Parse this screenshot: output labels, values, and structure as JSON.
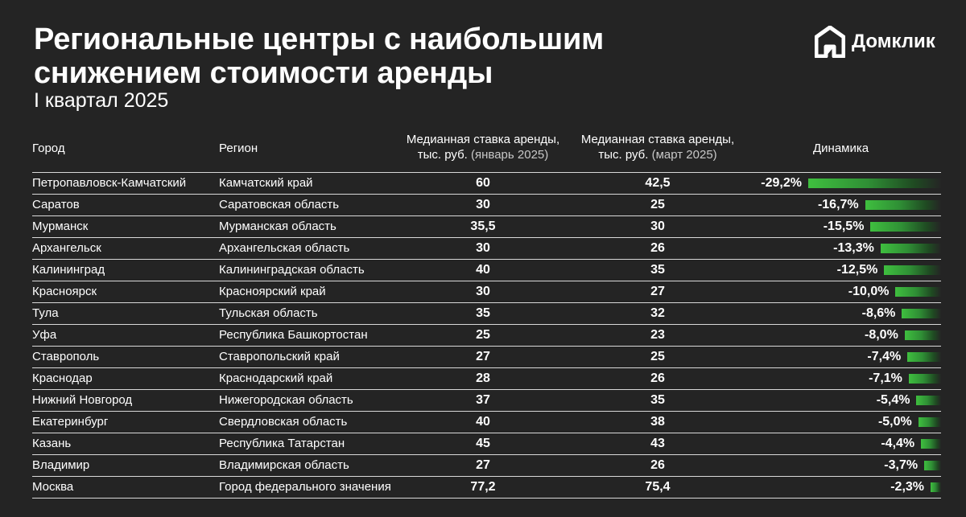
{
  "title_line1": "Региональные центры с наибольшим",
  "title_line2": "снижением стоимости аренды",
  "subtitle": "I квартал 2025",
  "logo": {
    "text": "Домклик",
    "icon": "domclick-house-icon"
  },
  "headers": {
    "city": "Город",
    "region": "Регион",
    "jan_line1": "Медианная ставка аренды,",
    "jan_line2_bold": "тыс. руб.",
    "jan_line2_light": "(январь 2025)",
    "mar_line1": "Медианная ставка аренды,",
    "mar_line2_bold": "тыс. руб.",
    "mar_line2_light": "(март 2025)",
    "dynamics": "Динамика"
  },
  "colors": {
    "background": "#242424",
    "bar": "#3fbf3f",
    "text": "#ffffff"
  },
  "chart_data": {
    "type": "table",
    "columns": [
      "Город",
      "Регион",
      "Медианная ставка аренды, тыс. руб. (январь 2025)",
      "Медианная ставка аренды, тыс. руб. (март 2025)",
      "Динамика"
    ],
    "rows": [
      {
        "city": "Петропавловск-Камчатский",
        "region": "Камчатский край",
        "jan": "60",
        "mar": "42,5",
        "change": "-29,2%",
        "change_value": -29.2
      },
      {
        "city": "Саратов",
        "region": "Саратовская область",
        "jan": "30",
        "mar": "25",
        "change": "-16,7%",
        "change_value": -16.7
      },
      {
        "city": "Мурманск",
        "region": "Мурманская область",
        "jan": "35,5",
        "mar": "30",
        "change": "-15,5%",
        "change_value": -15.5
      },
      {
        "city": "Архангельск",
        "region": "Архангельская область",
        "jan": "30",
        "mar": "26",
        "change": "-13,3%",
        "change_value": -13.3
      },
      {
        "city": "Калининград",
        "region": "Калининградская область",
        "jan": "40",
        "mar": "35",
        "change": "-12,5%",
        "change_value": -12.5
      },
      {
        "city": "Красноярск",
        "region": "Красноярский край",
        "jan": "30",
        "mar": "27",
        "change": "-10,0%",
        "change_value": -10.0
      },
      {
        "city": "Тула",
        "region": "Тульская область",
        "jan": "35",
        "mar": "32",
        "change": "-8,6%",
        "change_value": -8.6
      },
      {
        "city": "Уфа",
        "region": "Республика Башкортостан",
        "jan": "25",
        "mar": "23",
        "change": "-8,0%",
        "change_value": -8.0
      },
      {
        "city": "Ставрополь",
        "region": "Ставропольский край",
        "jan": "27",
        "mar": "25",
        "change": "-7,4%",
        "change_value": -7.4
      },
      {
        "city": "Краснодар",
        "region": "Краснодарский край",
        "jan": "28",
        "mar": "26",
        "change": "-7,1%",
        "change_value": -7.1
      },
      {
        "city": "Нижний Новгород",
        "region": "Нижегородская область",
        "jan": "37",
        "mar": "35",
        "change": "-5,4%",
        "change_value": -5.4
      },
      {
        "city": "Екатеринбург",
        "region": "Свердловская область",
        "jan": "40",
        "mar": "38",
        "change": "-5,0%",
        "change_value": -5.0
      },
      {
        "city": "Казань",
        "region": "Республика Татарстан",
        "jan": "45",
        "mar": "43",
        "change": "-4,4%",
        "change_value": -4.4
      },
      {
        "city": "Владимир",
        "region": "Владимирская область",
        "jan": "27",
        "mar": "26",
        "change": "-3,7%",
        "change_value": -3.7
      },
      {
        "city": "Москва",
        "region": "Город федерального значения",
        "jan": "77,2",
        "mar": "75,4",
        "change": "-2,3%",
        "change_value": -2.3
      }
    ]
  }
}
